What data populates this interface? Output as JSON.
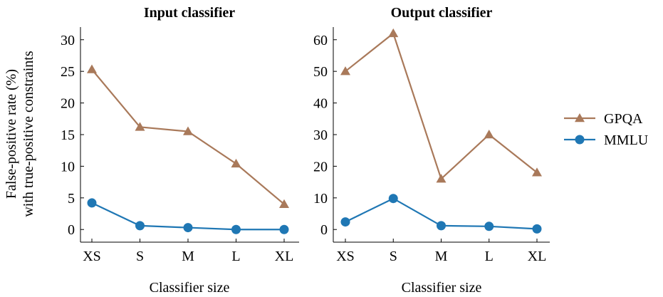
{
  "chart_data": [
    {
      "type": "line",
      "title": "Input classifier",
      "xlabel": "Classifier size",
      "ylabel": [
        "False-positive rate (%)",
        "with true-positive constraints"
      ],
      "categories": [
        "XS",
        "S",
        "M",
        "L",
        "XL"
      ],
      "ylim": [
        -2,
        32
      ],
      "yticks": [
        0,
        5,
        10,
        15,
        20,
        25,
        30
      ],
      "series": [
        {
          "name": "GPQA",
          "color": "#a9795a",
          "marker": "triangle",
          "values": [
            25.3,
            16.2,
            15.5,
            10.4,
            4.0
          ]
        },
        {
          "name": "MMLU",
          "color": "#1f77b4",
          "marker": "circle",
          "values": [
            4.2,
            0.6,
            0.3,
            0.0,
            0.0
          ]
        }
      ]
    },
    {
      "type": "line",
      "title": "Output classifier",
      "xlabel": "Classifier size",
      "categories": [
        "XS",
        "S",
        "M",
        "L",
        "XL"
      ],
      "ylim": [
        -4,
        64
      ],
      "yticks": [
        0,
        10,
        20,
        30,
        40,
        50,
        60
      ],
      "series": [
        {
          "name": "GPQA",
          "color": "#a9795a",
          "marker": "triangle",
          "values": [
            50.0,
            62.0,
            16.0,
            30.0,
            18.0
          ]
        },
        {
          "name": "MMLU",
          "color": "#1f77b4",
          "marker": "circle",
          "values": [
            2.4,
            9.8,
            1.2,
            1.0,
            0.2
          ]
        }
      ]
    }
  ],
  "legend": {
    "placement": "right",
    "items": [
      {
        "label": "GPQA",
        "color": "#a9795a",
        "marker": "triangle"
      },
      {
        "label": "MMLU",
        "color": "#1f77b4",
        "marker": "circle"
      }
    ]
  }
}
